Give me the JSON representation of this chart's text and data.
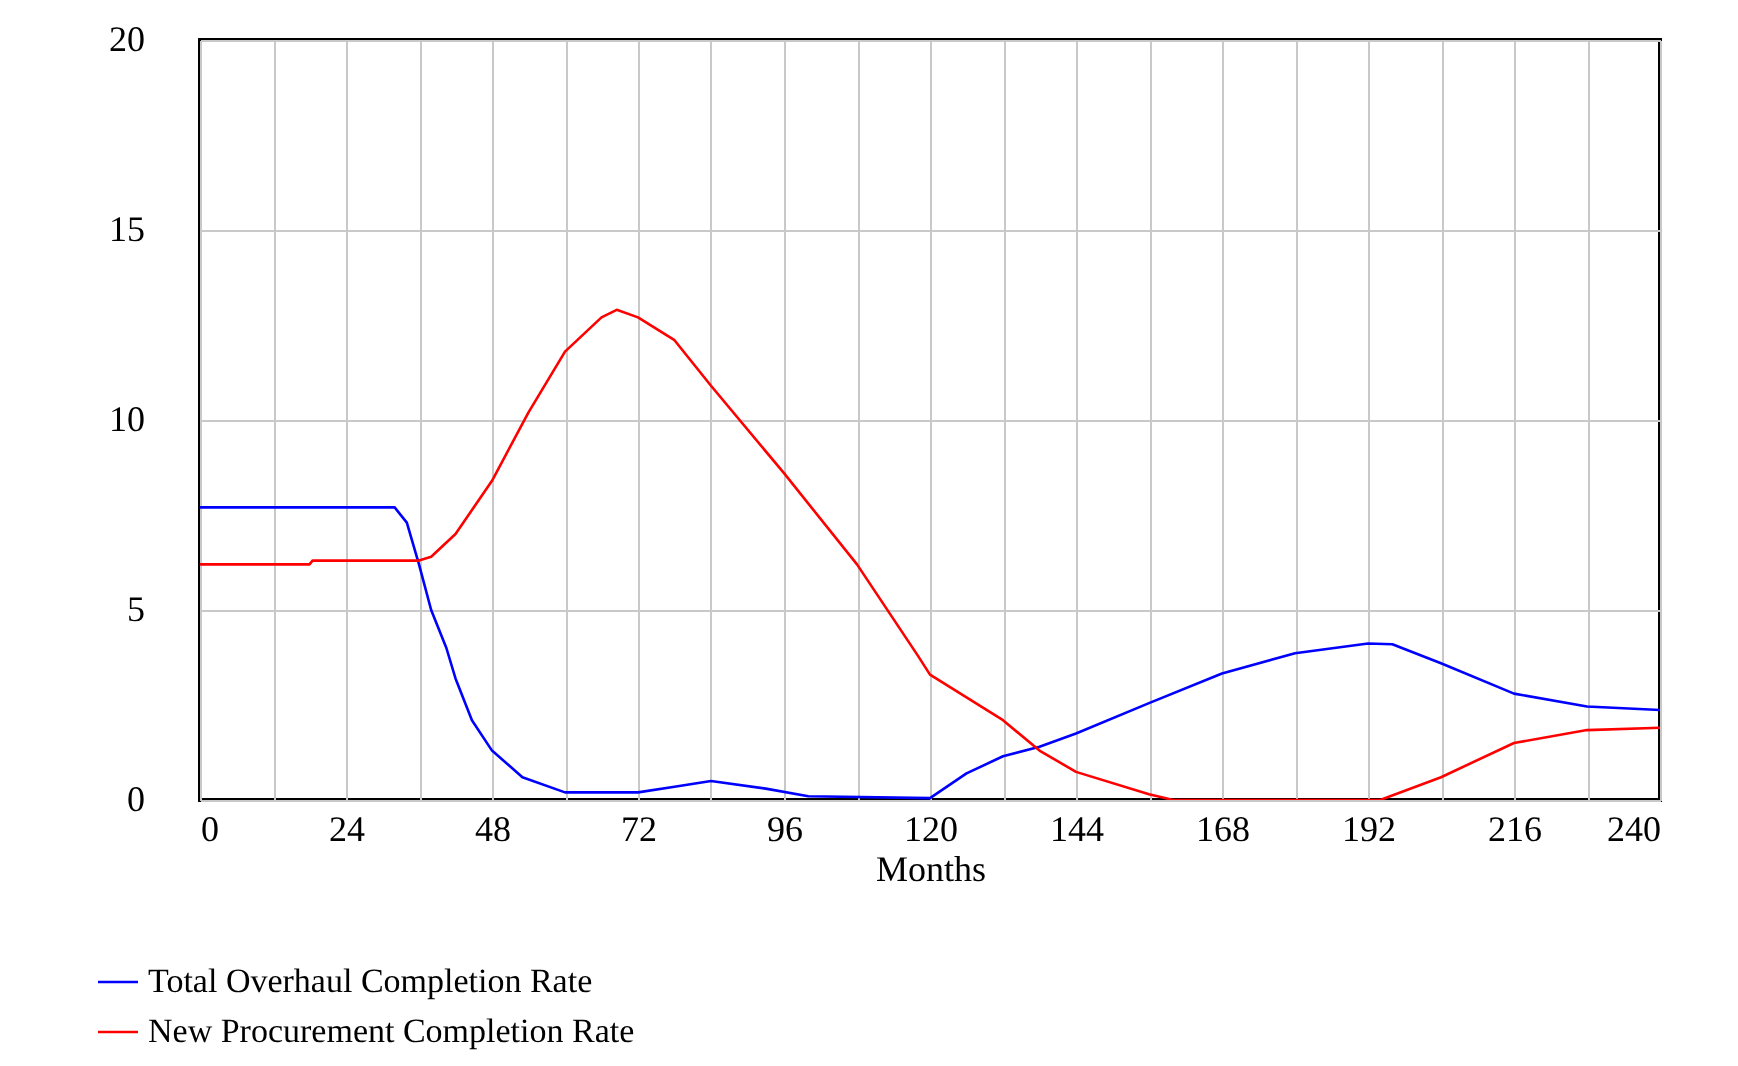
{
  "chart_data": {
    "type": "line",
    "xlabel": "Months",
    "xlim": [
      0,
      240
    ],
    "xticks": [
      0,
      {
        "value": 12,
        "label": null
      },
      24,
      {
        "value": 36,
        "label": null
      },
      48,
      {
        "value": 60,
        "label": null
      },
      72,
      {
        "value": 84,
        "label": null
      },
      96,
      {
        "value": 108,
        "label": null
      },
      120,
      {
        "value": 132,
        "label": null
      },
      144,
      {
        "value": 156,
        "label": null
      },
      168,
      {
        "value": 180,
        "label": null
      },
      192,
      {
        "value": 204,
        "label": null
      },
      216,
      {
        "value": 228,
        "label": null
      },
      240
    ],
    "ylim": [
      0,
      20
    ],
    "yticks": [
      0,
      5,
      10,
      15,
      20
    ],
    "grid": true,
    "legend": "bottom",
    "line_style": "solid",
    "series": [
      {
        "name": "Total Overhaul Completion Rate",
        "color": "#0000ff",
        "x": [
          0,
          32,
          34,
          36,
          38,
          40.5,
          42,
          44.7,
          48,
          53,
          60,
          72,
          78,
          84,
          93,
          100,
          120,
          126,
          132,
          138,
          144,
          156,
          168,
          180,
          192,
          196,
          204,
          216,
          228,
          240
        ],
        "values": [
          7.7,
          7.7,
          7.3,
          6.2,
          5.0,
          4.0,
          3.2,
          2.1,
          1.3,
          0.6,
          0.2,
          0.2,
          0.35,
          0.5,
          0.3,
          0.1,
          0.05,
          0.7,
          1.15,
          1.4,
          1.75,
          2.55,
          3.33,
          3.86,
          4.12,
          4.1,
          3.6,
          2.8,
          2.46,
          2.37
        ]
      },
      {
        "name": "New Procurement Completion Rate",
        "color": "#ff0000",
        "x": [
          0,
          18,
          18.5,
          36,
          38,
          42,
          48,
          54,
          60,
          66,
          68.5,
          72,
          78,
          84,
          96,
          108,
          118,
          120,
          132,
          138,
          144,
          156,
          160,
          194,
          204,
          216,
          228,
          240
        ],
        "values": [
          6.2,
          6.2,
          6.3,
          6.3,
          6.4,
          7.0,
          8.4,
          10.2,
          11.8,
          12.7,
          12.9,
          12.7,
          12.1,
          10.9,
          8.6,
          6.2,
          3.8,
          3.3,
          2.1,
          1.3,
          0.74,
          0.15,
          0,
          0,
          0.6,
          1.5,
          1.84,
          1.9
        ]
      }
    ]
  }
}
